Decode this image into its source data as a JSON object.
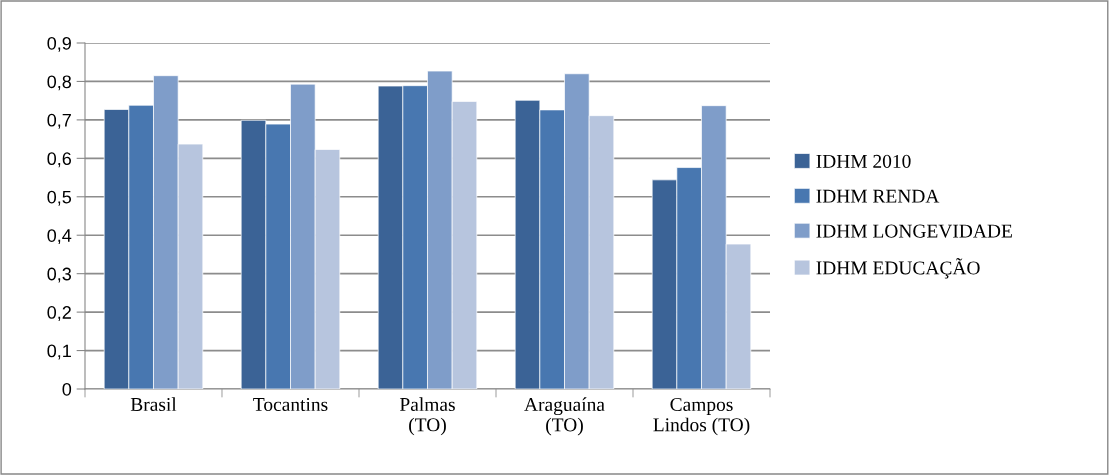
{
  "chart_data": {
    "type": "bar",
    "categories": [
      "Brasil",
      "Tocantins",
      "Palmas\n(TO)",
      "Araguaína\n(TO)",
      "Campos\nLindos (TO)"
    ],
    "series": [
      {
        "name": "IDHM 2010",
        "color": "#3b6396",
        "values": [
          0.727,
          0.699,
          0.788,
          0.751,
          0.544
        ]
      },
      {
        "name": "IDHM RENDA",
        "color": "#4877b0",
        "values": [
          0.738,
          0.689,
          0.789,
          0.726,
          0.576
        ]
      },
      {
        "name": "IDHM LONGEVIDADE",
        "color": "#7f9dc9",
        "values": [
          0.815,
          0.793,
          0.827,
          0.82,
          0.737
        ]
      },
      {
        "name": "IDHM EDUCAÇÃO",
        "color": "#b7c5de",
        "values": [
          0.637,
          0.623,
          0.748,
          0.711,
          0.377
        ]
      }
    ],
    "ylim": [
      0,
      0.9
    ],
    "yticks": [
      {
        "value": 0,
        "label": "0"
      },
      {
        "value": 0.1,
        "label": "0,1"
      },
      {
        "value": 0.2,
        "label": "0,2"
      },
      {
        "value": 0.3,
        "label": "0,3"
      },
      {
        "value": 0.4,
        "label": "0,4"
      },
      {
        "value": 0.5,
        "label": "0,5"
      },
      {
        "value": 0.6,
        "label": "0,6"
      },
      {
        "value": 0.7,
        "label": "0,7"
      },
      {
        "value": 0.8,
        "label": "0,8"
      },
      {
        "value": 0.9,
        "label": "0,9"
      }
    ],
    "grid": "y",
    "legend": "right"
  }
}
